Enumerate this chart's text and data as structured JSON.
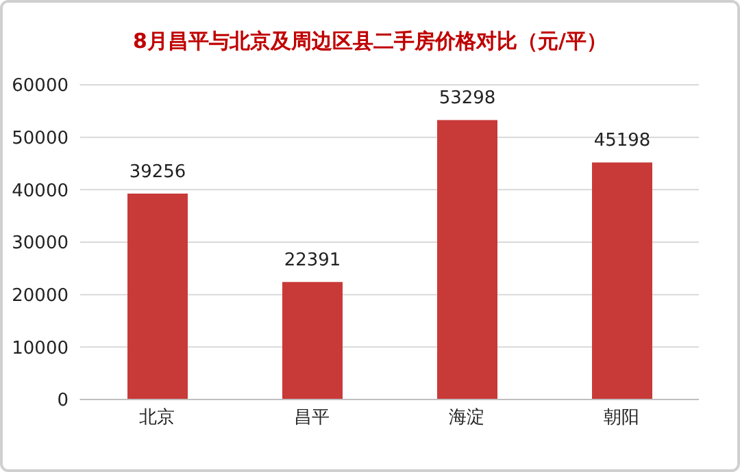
{
  "chart_data": {
    "type": "bar",
    "title": "8月昌平与北京及周边区县二手房价格对比（元/平）",
    "categories": [
      "北京",
      "昌平",
      "海淀",
      "朝阳"
    ],
    "values": [
      39256,
      22391,
      53298,
      45198
    ],
    "color": "#c83a38",
    "ylim": [
      0,
      60000
    ],
    "yticks": [
      0,
      10000,
      20000,
      30000,
      40000,
      50000,
      60000
    ],
    "grid": "y",
    "data_labels": true,
    "legend": false
  }
}
